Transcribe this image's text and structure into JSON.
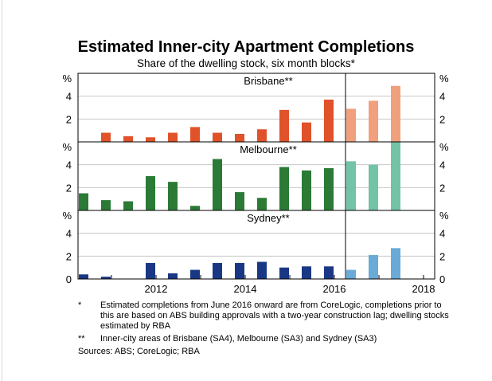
{
  "title": "Estimated Inner-city Apartment Completions",
  "subtitle": "Share of the dwelling stock, six month blocks*",
  "chart_data": {
    "type": "bar",
    "unit": "%",
    "x": [
      2010.5,
      2011,
      2011.5,
      2012,
      2012.5,
      2013,
      2013.5,
      2014,
      2014.5,
      2015,
      2015.5,
      2016,
      2016.5,
      2017,
      2017.5,
      2018
    ],
    "xlim": [
      2010.25,
      2018.25
    ],
    "x_ticks": [
      "2012",
      "2014",
      "2016",
      "2018"
    ],
    "estimate_from": 2016,
    "colors": {
      "Brisbane**": {
        "actual": "#e0522a",
        "estimate": "#f0a07c"
      },
      "Melbourne**": {
        "actual": "#2b7a36",
        "estimate": "#73c3a6"
      },
      "Sydney**": {
        "actual": "#1a3785",
        "estimate": "#69aad6"
      }
    },
    "panels": [
      {
        "name": "Brisbane**",
        "ylim": [
          0,
          6
        ],
        "y_ticks": [
          "2",
          "4",
          "%"
        ],
        "values": [
          0,
          0.8,
          0.5,
          0.4,
          0.8,
          1.3,
          0.8,
          0.7,
          1.1,
          2.8,
          1.7,
          3.7,
          2.9,
          3.6,
          4.9,
          0
        ]
      },
      {
        "name": "Melbourne**",
        "ylim": [
          0,
          6
        ],
        "y_ticks": [
          "2",
          "4",
          "%"
        ],
        "values": [
          1.5,
          0.9,
          0.8,
          3.0,
          2.5,
          0.4,
          4.5,
          1.6,
          1.1,
          3.8,
          3.5,
          3.7,
          4.3,
          4.0,
          6.0,
          0
        ]
      },
      {
        "name": "Sydney**",
        "ylim": [
          0,
          6
        ],
        "y_ticks": [
          "0",
          "2",
          "4",
          "%"
        ],
        "values": [
          0.4,
          0.2,
          0,
          1.4,
          0.5,
          0.8,
          1.4,
          1.4,
          1.5,
          1.0,
          1.1,
          1.1,
          0.8,
          2.1,
          2.7,
          0
        ]
      }
    ]
  },
  "notes": [
    {
      "mark": "*",
      "text": "Estimated completions from June 2016 onward are from CoreLogic, completions prior to this are based on ABS building approvals with a two-year construction lag; dwelling stocks estimated by RBA"
    },
    {
      "mark": "**",
      "text": "Inner-city areas of Brisbane (SA4), Melbourne (SA3) and Sydney (SA3)"
    }
  ],
  "sources": "Sources:   ABS; CoreLogic; RBA"
}
